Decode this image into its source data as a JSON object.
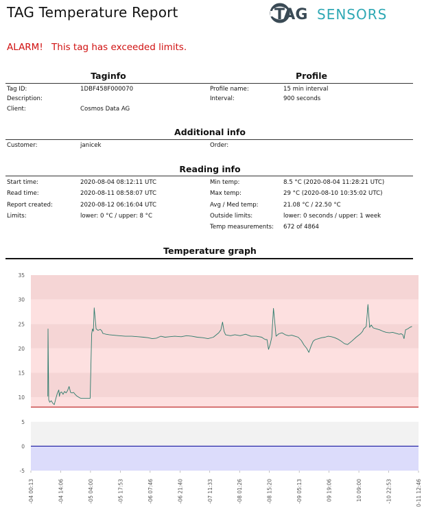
{
  "header": {
    "title": "TAG Temperature Report",
    "logo": {
      "brand_bold": "TAG",
      "brand_light": "SENSORS"
    }
  },
  "alarm": {
    "label": "ALARM!",
    "message": "This tag has exceeded limits."
  },
  "taginfo": {
    "heading": "Taginfo",
    "rows": [
      {
        "key": "Tag ID:",
        "value": "1DBF458F000070"
      },
      {
        "key": "Description:",
        "value": ""
      },
      {
        "key": "Client:",
        "value": "Cosmos Data AG"
      }
    ]
  },
  "profile": {
    "heading": "Profile",
    "rows": [
      {
        "key": "Profile name:",
        "value": "15 min interval"
      },
      {
        "key": "Interval:",
        "value": "900 seconds"
      }
    ]
  },
  "additional_info": {
    "heading": "Additional info",
    "rows": [
      {
        "key": "Customer:",
        "value": "janicek"
      },
      {
        "key": "Order:",
        "value": ""
      }
    ]
  },
  "reading_info": {
    "heading": "Reading info",
    "left": [
      {
        "key": "Start time:",
        "value": "2020-08-04 08:12:11 UTC"
      },
      {
        "key": "Read time:",
        "value": "2020-08-11 08:58:07 UTC"
      },
      {
        "key": "Report created:",
        "value": "2020-08-12 06:16:04 UTC"
      },
      {
        "key": "Limits:",
        "value": "lower: 0 °C / upper: 8 °C"
      }
    ],
    "right": [
      {
        "key": "Min temp:",
        "value": "8.5 °C (2020-08-04 11:28:21 UTC)"
      },
      {
        "key": "Max temp:",
        "value": "29 °C (2020-08-10 10:35:02 UTC)"
      },
      {
        "key": "Avg / Med temp:",
        "value": "21.08 °C / 22.50 °C"
      },
      {
        "key": "Outside limits:",
        "value": "lower: 0 seconds / upper: 1 week"
      },
      {
        "key": "Temp measurements:",
        "value": "672 of 4864"
      }
    ]
  },
  "graph": {
    "heading": "Temperature graph",
    "colors": {
      "upper_band_dark": "#f5d5d5",
      "upper_band_light": "#fde0e0",
      "middle_band_a": "#ffffff",
      "middle_band_b": "#f2f2f2",
      "lower_band": "#dcdcfb",
      "upper_limit_line": "#c03030",
      "lower_limit_line": "#2a2aa8",
      "series_line": "#2b7a6a"
    }
  },
  "chart_data": {
    "type": "line",
    "title": "",
    "xlabel": "",
    "ylabel": "",
    "ylim": [
      -5,
      35
    ],
    "yticks": [
      35,
      30,
      25,
      20,
      15,
      10,
      5,
      0,
      -5
    ],
    "xticks": [
      "-04 00:13",
      "-04 14:06",
      "-05 04:00",
      "-05 17:53",
      "-06 07:46",
      "-06 21:40",
      "-07 11:33",
      "-08 01:26",
      "-08 15:20",
      "-09 05:13",
      "09 19:06",
      "10 09:00",
      "-10 22:53",
      "0-11 12:46"
    ],
    "xrange_hours": [
      0,
      180.55
    ],
    "limits": {
      "lower": 0,
      "upper": 8
    },
    "grid": false,
    "series": [
      {
        "values_time_hours": [
          7.9,
          8.0,
          8.3,
          8.8,
          9.5,
          10.2,
          10.9,
          11.6,
          12.3,
          13.0,
          13.3,
          13.6,
          14.3,
          15.0,
          15.7,
          16.4,
          17.1,
          17.8,
          18.5,
          19.2,
          19.9,
          20.6,
          21.3,
          22.0,
          22.7,
          23.4,
          24.1,
          24.8,
          25.5,
          26.2,
          26.9,
          27.6,
          28.3,
          28.7,
          29.1,
          29.5,
          30.4,
          31.3,
          32.3,
          33.0,
          33.5,
          34.2,
          35.0,
          36.5,
          38.5,
          41.0,
          44.0,
          47.0,
          50.0,
          52.5,
          54.5,
          56.5,
          58.5,
          60.5,
          62.5,
          64.5,
          67.0,
          70.0,
          72.5,
          75.0,
          77.5,
          80.0,
          82.5,
          85.0,
          87.5,
          88.5,
          89.3,
          90.0,
          90.7,
          91.6,
          93.0,
          95.0,
          97.5,
          100.0,
          102.5,
          105.0,
          107.5,
          108.5,
          109.3,
          110.0,
          110.7,
          111.5,
          112.2,
          113.0,
          114.2,
          115.5,
          117.0,
          118.5,
          120.0,
          121.5,
          123.0,
          124.5,
          126.0,
          127.2,
          128.5,
          129.5,
          130.5,
          131.5,
          132.5,
          134.0,
          135.5,
          137.0,
          138.5,
          140.0,
          141.5,
          143.0,
          144.5,
          146.0,
          147.5,
          149.5,
          151.5,
          153.5,
          154.5,
          155.0,
          155.5,
          156.2,
          157.0,
          157.8,
          158.5,
          159.5,
          161.0,
          162.5,
          164.0,
          165.5,
          167.0,
          168.5,
          170.0,
          171.5,
          172.5,
          173.2,
          173.8,
          174.5,
          175.5,
          176.5,
          177.5
        ],
        "values": [
          10.2,
          24.0,
          9.5,
          9.0,
          9.3,
          8.8,
          8.5,
          9.7,
          10.8,
          11.5,
          10.2,
          10.9,
          11.1,
          10.6,
          11.2,
          10.9,
          11.4,
          12.2,
          11.0,
          10.9,
          11.0,
          10.6,
          10.3,
          10.1,
          9.9,
          9.8,
          9.8,
          9.8,
          9.8,
          9.8,
          9.8,
          9.8,
          23.0,
          24.0,
          23.5,
          28.3,
          24.0,
          23.7,
          23.9,
          23.6,
          23.1,
          23.0,
          22.9,
          22.8,
          22.7,
          22.6,
          22.5,
          22.5,
          22.4,
          22.3,
          22.2,
          22.0,
          22.1,
          22.5,
          22.3,
          22.4,
          22.5,
          22.4,
          22.6,
          22.5,
          22.3,
          22.2,
          22.0,
          22.3,
          23.2,
          23.8,
          25.4,
          23.5,
          22.8,
          22.7,
          22.6,
          22.8,
          22.6,
          22.9,
          22.5,
          22.5,
          22.3,
          22.0,
          21.8,
          21.8,
          19.8,
          20.9,
          22.3,
          28.2,
          22.5,
          23.0,
          23.2,
          22.8,
          22.6,
          22.7,
          22.5,
          22.3,
          21.6,
          20.7,
          20.0,
          19.2,
          20.5,
          21.5,
          21.8,
          22.0,
          22.2,
          22.3,
          22.5,
          22.4,
          22.2,
          21.9,
          21.5,
          21.0,
          20.8,
          21.5,
          22.3,
          23.0,
          23.5,
          24.0,
          24.2,
          24.5,
          29.0,
          24.3,
          24.8,
          24.2,
          24.0,
          23.8,
          23.5,
          23.3,
          23.2,
          23.3,
          23.1,
          22.9,
          23.0,
          22.8,
          22.0,
          23.8,
          24.0,
          24.3,
          24.5
        ]
      }
    ]
  }
}
